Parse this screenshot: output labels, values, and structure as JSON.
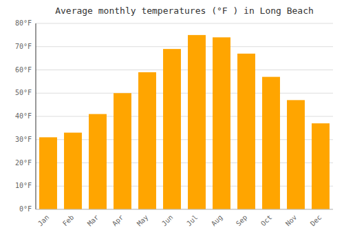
{
  "chart_data": {
    "type": "bar",
    "title": "Average monthly temperatures (°F ) in Long Beach",
    "categories": [
      "Jan",
      "Feb",
      "Mar",
      "Apr",
      "May",
      "Jun",
      "Jul",
      "Aug",
      "Sep",
      "Oct",
      "Nov",
      "Dec"
    ],
    "values": [
      31,
      33,
      41,
      50,
      59,
      69,
      75,
      74,
      67,
      57,
      47,
      37
    ],
    "color": "#FFA500",
    "ylim": [
      0,
      80
    ],
    "yticks": [
      {
        "value": 0,
        "label": "0°F"
      },
      {
        "value": 10,
        "label": "10°F"
      },
      {
        "value": 20,
        "label": "20°F"
      },
      {
        "value": 30,
        "label": "30°F"
      },
      {
        "value": 40,
        "label": "40°F"
      },
      {
        "value": 50,
        "label": "50°F"
      },
      {
        "value": 60,
        "label": "60°F"
      },
      {
        "value": 70,
        "label": "70°F"
      },
      {
        "value": 80,
        "label": "80°F"
      }
    ],
    "grid": true
  }
}
